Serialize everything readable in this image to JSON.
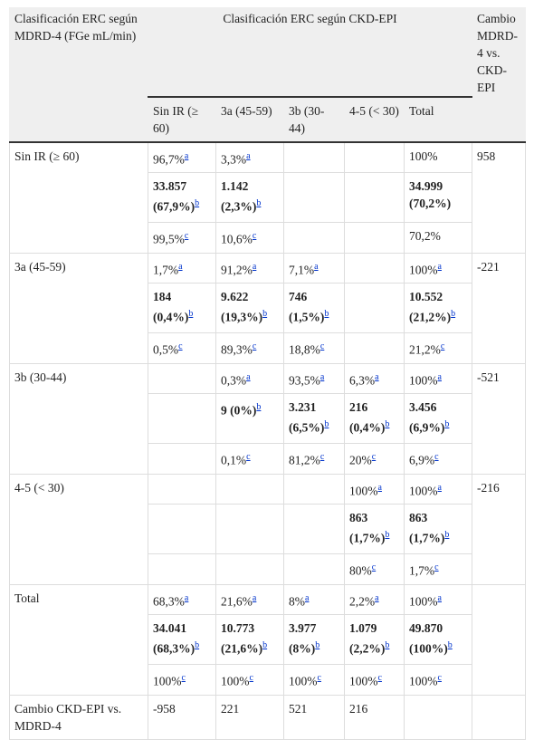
{
  "table": {
    "header": {
      "row_label": "Clasificación ERC según MDRD-4 (FGe mL/min)",
      "group": "Clasificación ERC según CKD-EPI",
      "change": "Cambio MDRD-4 vs. CKD-EPI",
      "columns": [
        "Sin IR (≥ 60)",
        "3a (45-59)",
        "3b (30-44)",
        "4-5 (< 30)",
        "Total"
      ]
    },
    "groups": [
      {
        "label": "Sin IR (≥ 60)",
        "change": "958",
        "rows": [
          [
            {
              "text": "96,7%",
              "sup": "a"
            },
            {
              "text": "3,3%",
              "sup": "a"
            },
            null,
            null,
            {
              "text": "100%"
            }
          ],
          [
            {
              "text": "33.857 (67,9%)",
              "sup": "b"
            },
            {
              "text": "1.142 (2,3%)",
              "sup": "b"
            },
            null,
            null,
            {
              "text": "34.999 (70,2%)"
            }
          ],
          [
            {
              "text": "99,5%",
              "sup": "c"
            },
            {
              "text": "10,6%",
              "sup": "c"
            },
            null,
            null,
            {
              "text": "70,2%"
            }
          ]
        ]
      },
      {
        "label": "3a (45-59)",
        "change": "-221",
        "rows": [
          [
            {
              "text": "1,7%",
              "sup": "a"
            },
            {
              "text": "91,2%",
              "sup": "a"
            },
            {
              "text": "7,1%",
              "sup": "a"
            },
            null,
            {
              "text": "100%",
              "sup": "a"
            }
          ],
          [
            {
              "text": "184 (0,4%)",
              "sup": "b"
            },
            {
              "text": "9.622 (19,3%)",
              "sup": "b"
            },
            {
              "text": "746 (1,5%)",
              "sup": "b"
            },
            null,
            {
              "text": "10.552 (21,2%)",
              "sup": "b"
            }
          ],
          [
            {
              "text": "0,5%",
              "sup": "c"
            },
            {
              "text": "89,3%",
              "sup": "c"
            },
            {
              "text": "18,8%",
              "sup": "c"
            },
            null,
            {
              "text": "21,2%",
              "sup": "c"
            }
          ]
        ]
      },
      {
        "label": "3b (30-44)",
        "change": "-521",
        "rows": [
          [
            null,
            {
              "text": "0,3%",
              "sup": "a"
            },
            {
              "text": "93,5%",
              "sup": "a"
            },
            {
              "text": "6,3%",
              "sup": "a"
            },
            {
              "text": "100%",
              "sup": "a"
            }
          ],
          [
            null,
            {
              "text": "9 (0%)",
              "sup": "b"
            },
            {
              "text": "3.231 (6,5%)",
              "sup": "b"
            },
            {
              "text": "216 (0,4%)",
              "sup": "b"
            },
            {
              "text": "3.456 (6,9%)",
              "sup": "b"
            }
          ],
          [
            null,
            {
              "text": "0,1%",
              "sup": "c"
            },
            {
              "text": "81,2%",
              "sup": "c"
            },
            {
              "text": "20%",
              "sup": "c"
            },
            {
              "text": "6,9%",
              "sup": "c"
            }
          ]
        ]
      },
      {
        "label": "4-5 (< 30)",
        "change": "-216",
        "rows": [
          [
            null,
            null,
            null,
            {
              "text": "100%",
              "sup": "a"
            },
            {
              "text": "100%",
              "sup": "a"
            }
          ],
          [
            null,
            null,
            null,
            {
              "text": "863 (1,7%)",
              "sup": "b"
            },
            {
              "text": "863 (1,7%)",
              "sup": "b"
            }
          ],
          [
            null,
            null,
            null,
            {
              "text": "80%",
              "sup": "c"
            },
            {
              "text": "1,7%",
              "sup": "c"
            }
          ]
        ]
      },
      {
        "label": "Total",
        "rows": [
          [
            {
              "text": "68,3%",
              "sup": "a"
            },
            {
              "text": "21,6%",
              "sup": "a"
            },
            {
              "text": "8%",
              "sup": "a"
            },
            {
              "text": "2,2%",
              "sup": "a"
            },
            {
              "text": "100%",
              "sup": "a"
            }
          ],
          [
            {
              "text": "34.041 (68,3%)",
              "sup": "b"
            },
            {
              "text": "10.773 (21,6%)",
              "sup": "b"
            },
            {
              "text": "3.977 (8%)",
              "sup": "b"
            },
            {
              "text": "1.079 (2,2%)",
              "sup": "b"
            },
            {
              "text": "49.870 (100%)",
              "sup": "b"
            }
          ],
          [
            {
              "text": "100%",
              "sup": "c"
            },
            {
              "text": "100%",
              "sup": "c"
            },
            {
              "text": "100%",
              "sup": "c"
            },
            {
              "text": "100%",
              "sup": "c"
            },
            {
              "text": "100%",
              "sup": "c"
            }
          ]
        ]
      }
    ],
    "footer": {
      "label": "Cambio CKD-EPI vs. MDRD-4",
      "values": [
        "-958",
        "221",
        "521",
        "216"
      ]
    }
  }
}
